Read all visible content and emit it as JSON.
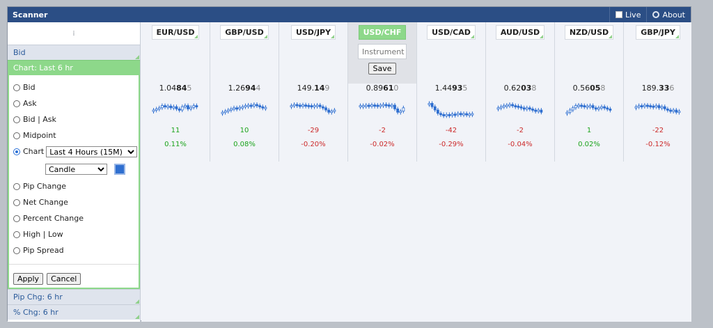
{
  "window": {
    "title": "Scanner",
    "live_label": "Live",
    "about_label": "About"
  },
  "sidebar": {
    "grip": "⁞",
    "bid_section": "Bid",
    "active_section": "Chart: Last 6 hr",
    "options": [
      "Bid",
      "Ask",
      "Bid | Ask",
      "Midpoint"
    ],
    "chart_label": "Chart",
    "chart_period": "Last 4 Hours (15M)",
    "chart_style": "Candle",
    "options2": [
      "Pip Change",
      "Net Change",
      "Percent Change",
      "High | Low",
      "Pip Spread"
    ],
    "apply": "Apply",
    "cancel": "Cancel",
    "pip_section": "Pip Chg: 6 hr",
    "pct_section": "% Chg: 6 hr",
    "accent_color": "#8dd88a",
    "chart_color": "#2f6fd0"
  },
  "editor": {
    "placeholder": "Instrument",
    "save": "Save"
  },
  "instruments": [
    {
      "name": "EUR/USD",
      "price_main": "1.04",
      "price_bold": "84",
      "price_frac": "5",
      "pips": "11",
      "pct": "0.11%",
      "dir": "pos",
      "trend": [
        0.5,
        0.45,
        0.4,
        0.3,
        0.35,
        0.32,
        0.4,
        0.35,
        0.45,
        0.5,
        0.35,
        0.3,
        0.45,
        0.38,
        0.3,
        0.35
      ]
    },
    {
      "name": "GBP/USD",
      "price_main": "1.26",
      "price_bold": "94",
      "price_frac": "4",
      "pips": "10",
      "pct": "0.08%",
      "dir": "pos",
      "trend": [
        0.6,
        0.55,
        0.5,
        0.45,
        0.4,
        0.42,
        0.38,
        0.35,
        0.3,
        0.28,
        0.32,
        0.25,
        0.3,
        0.35,
        0.4,
        0.38
      ]
    },
    {
      "name": "USD/JPY",
      "price_main": "149.",
      "price_bold": "14",
      "price_frac": "9",
      "pips": "-29",
      "pct": "-0.20%",
      "dir": "neg",
      "trend": [
        0.3,
        0.25,
        0.28,
        0.3,
        0.27,
        0.29,
        0.3,
        0.35,
        0.3,
        0.28,
        0.35,
        0.4,
        0.5,
        0.6,
        0.55,
        0.5
      ]
    },
    {
      "name": "USD/CHF",
      "price_main": "0.89",
      "price_bold": "61",
      "price_frac": "0",
      "pips": "-2",
      "pct": "-0.02%",
      "dir": "neg",
      "trend": [
        0.3,
        0.3,
        0.28,
        0.29,
        0.27,
        0.28,
        0.3,
        0.28,
        0.25,
        0.27,
        0.3,
        0.28,
        0.45,
        0.6,
        0.55,
        0.4
      ]
    },
    {
      "name": "USD/CAD",
      "price_main": "1.44",
      "price_bold": "93",
      "price_frac": "5",
      "pips": "-42",
      "pct": "-0.29%",
      "dir": "neg",
      "trend": [
        0.2,
        0.35,
        0.5,
        0.65,
        0.7,
        0.75,
        0.7,
        0.72,
        0.68,
        0.7,
        0.65,
        0.68,
        0.66,
        0.7,
        0.68,
        0.66
      ]
    },
    {
      "name": "AUD/USD",
      "price_main": "0.62",
      "price_bold": "03",
      "price_frac": "8",
      "pips": "-2",
      "pct": "-0.04%",
      "dir": "neg",
      "trend": [
        0.4,
        0.35,
        0.3,
        0.28,
        0.25,
        0.3,
        0.32,
        0.35,
        0.4,
        0.45,
        0.4,
        0.45,
        0.5,
        0.55,
        0.5,
        0.6
      ]
    },
    {
      "name": "NZD/USD",
      "price_main": "0.56",
      "price_bold": "05",
      "price_frac": "8",
      "pips": "1",
      "pct": "0.02%",
      "dir": "pos",
      "trend": [
        0.6,
        0.5,
        0.4,
        0.3,
        0.28,
        0.3,
        0.35,
        0.32,
        0.3,
        0.4,
        0.45,
        0.4,
        0.35,
        0.4,
        0.45,
        0.5
      ]
    },
    {
      "name": "GBP/JPY",
      "price_main": "189.",
      "price_bold": "33",
      "price_frac": "6",
      "pips": "-22",
      "pct": "-0.12%",
      "dir": "neg",
      "trend": [
        0.35,
        0.3,
        0.32,
        0.28,
        0.3,
        0.32,
        0.35,
        0.3,
        0.4,
        0.35,
        0.45,
        0.5,
        0.55,
        0.5,
        0.6,
        0.55
      ]
    }
  ],
  "selected_index": 3
}
